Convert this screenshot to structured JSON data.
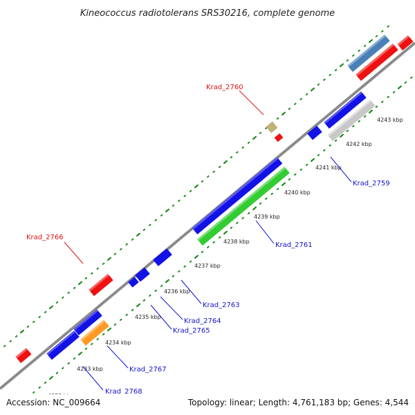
{
  "title": "Kineococcus radiotolerans SRS30216, complete genome",
  "footer": {
    "accession": "Accession: NC_009664",
    "topology": "Topology: linear; Length: 4,761,183 bp; Genes: 4,544"
  },
  "colors": {
    "forward_label": "#dd1111",
    "reverse_label": "#1111cc",
    "track": "#8a8a8a",
    "dots": "#1a8a1a",
    "blue": "#1212e6",
    "red": "#ee1111",
    "green": "#33cc33",
    "orange": "#ff9922",
    "steelblue": "#4a80b8",
    "silver": "#c8c8c8",
    "khaki": "#c2b27a"
  },
  "ticks": [
    "4233 kbp",
    "4234 kbp",
    "4235 kbp",
    "4236 kbp",
    "4237 kbp",
    "4238 kbp",
    "4239 kbp",
    "4240 kbp",
    "4241 kbp",
    "4242 kbp",
    "4243 kbp"
  ],
  "labels": {
    "krad_2760": "Krad_2760",
    "krad_2766": "Krad_2766",
    "krad_2759": "Krad_2759",
    "krad_2761": "Krad_2761",
    "krad_2763": "Krad_2763",
    "krad_2764": "Krad_2764",
    "krad_2765": "Krad_2765",
    "krad_2767": "Krad_2767",
    "krad_2768": "Krad_2768"
  }
}
